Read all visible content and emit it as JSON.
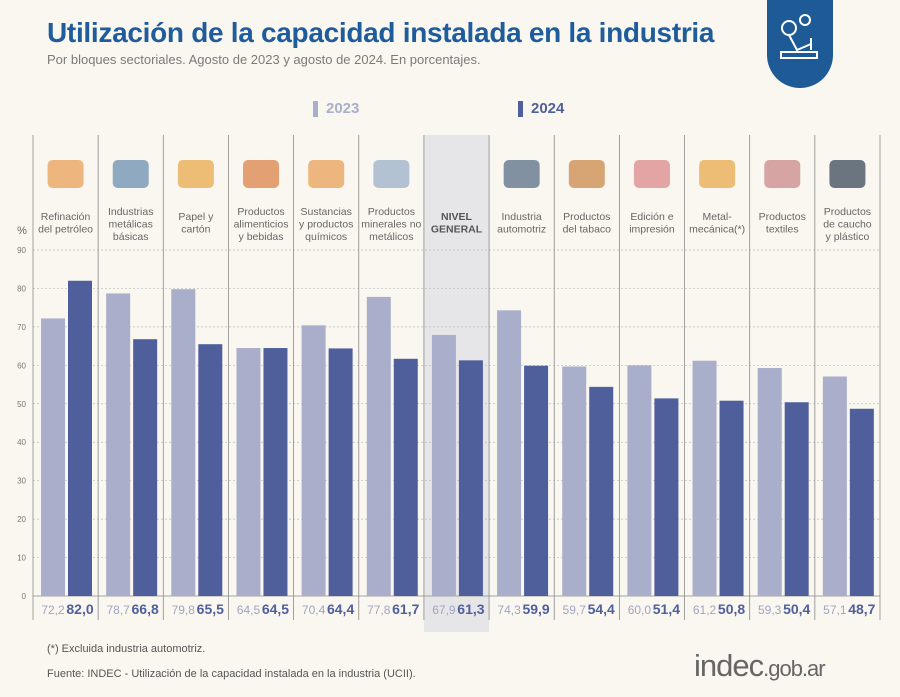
{
  "header": {
    "title": "Utilización de la capacidad instalada en la industria",
    "subtitle": "Por bloques sectoriales. Agosto de 2023 y agosto de 2024. En porcentajes."
  },
  "footer": {
    "note": "(*) Excluida industria automotriz.",
    "source": "Fuente: INDEC - Utilización de la capacidad instalada en la industria (UCII).",
    "logo_main": "indec",
    "logo_suffix": ".gob.ar"
  },
  "colors": {
    "c2023": "#a9aecb",
    "c2024": "#4f5f9c",
    "title": "#1f5c9c",
    "highlight": "#e6e6e8"
  },
  "chart_data": {
    "type": "bar",
    "ylabel": "%",
    "ylim": [
      0,
      90
    ],
    "yticks": [
      0,
      10,
      20,
      30,
      40,
      50,
      60,
      70,
      80,
      90
    ],
    "grid": true,
    "legend_placement": "top",
    "categories": [
      [
        "Refinación",
        "del petróleo"
      ],
      [
        "Industrias",
        "metálicas",
        "básicas"
      ],
      [
        "Papel y",
        "cartón"
      ],
      [
        "Productos",
        "alimenticios",
        "y bebidas"
      ],
      [
        "Sustancias",
        "y productos",
        "químicos"
      ],
      [
        "Productos",
        "minerales no",
        "metálicos"
      ],
      [
        "NIVEL",
        "GENERAL"
      ],
      [
        "Industria",
        "automotriz"
      ],
      [
        "Productos",
        "del tabaco"
      ],
      [
        "Edición e",
        "impresión"
      ],
      [
        "Metal-",
        "mecánica(*)"
      ],
      [
        "Productos",
        "textiles"
      ],
      [
        "Productos",
        "de caucho",
        "y plástico"
      ]
    ],
    "highlight_category_index": 6,
    "series": [
      {
        "name": "2023",
        "values": [
          72.2,
          78.7,
          79.8,
          64.5,
          70.4,
          77.8,
          67.9,
          74.3,
          59.7,
          60.0,
          61.2,
          59.3,
          57.1
        ],
        "labels": [
          "72,2",
          "78,7",
          "79,8",
          "64,5",
          "70,4",
          "77,8",
          "67,9",
          "74,3",
          "59,7",
          "60,0",
          "61,2",
          "59,3",
          "57,1"
        ]
      },
      {
        "name": "2024",
        "values": [
          82.0,
          66.8,
          65.5,
          64.5,
          64.4,
          61.7,
          61.3,
          59.9,
          54.4,
          51.4,
          50.8,
          50.4,
          48.7
        ],
        "labels": [
          "82,0",
          "66,8",
          "65,5",
          "64,5",
          "64,4",
          "61,7",
          "61,3",
          "59,9",
          "54,4",
          "51,4",
          "50,8",
          "50,4",
          "48,7"
        ]
      }
    ]
  }
}
